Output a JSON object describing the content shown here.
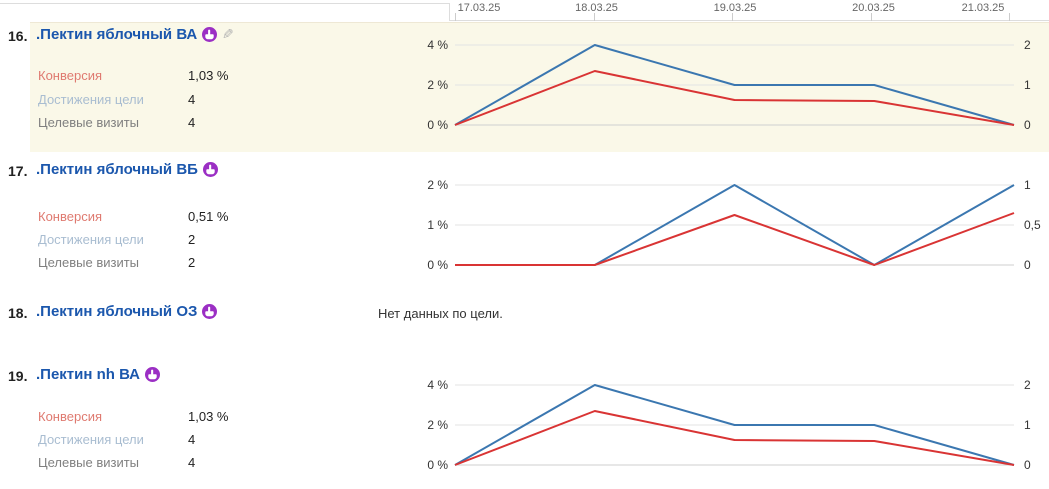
{
  "header": {
    "dates": [
      "17.03.25",
      "18.03.25",
      "19.03.25",
      "20.03.25",
      "21.03.25"
    ]
  },
  "metric_labels": {
    "conversion": "Конверсия",
    "achievements": "Достижения цели",
    "visits": "Целевые визиты"
  },
  "goals": [
    {
      "number": "16.",
      "title": ".Пектин яблочный ВА",
      "metrics": {
        "conversion": "1,03 %",
        "achievements": "4",
        "visits": "4"
      }
    },
    {
      "number": "17.",
      "title": ".Пектин яблочный ВБ",
      "metrics": {
        "conversion": "0,51 %",
        "achievements": "2",
        "visits": "2"
      }
    },
    {
      "number": "18.",
      "title": ".Пектин яблочный ОЗ",
      "no_data_text": "Нет данных по цели."
    },
    {
      "number": "19.",
      "title": ".Пектин nh ВА",
      "metrics": {
        "conversion": "1,03 %",
        "achievements": "4",
        "visits": "4"
      }
    }
  ],
  "chart_data": [
    {
      "type": "line",
      "goal": "16. .Пектин яблочный ВА",
      "x": [
        "17.03.25",
        "18.03.25",
        "19.03.25",
        "20.03.25",
        "21.03.25"
      ],
      "series": [
        {
          "name": "Конверсия",
          "axis": "left",
          "unit": "%",
          "color": "#d93434",
          "values": [
            0,
            2.7,
            1.25,
            1.2,
            0
          ]
        },
        {
          "name": "Достижения цели",
          "axis": "right",
          "unit": "count",
          "color": "#3b77b0",
          "values": [
            0,
            2,
            1,
            1,
            0
          ]
        }
      ],
      "left_axis": {
        "ticks": [
          "4 %",
          "2 %",
          "0 %"
        ],
        "max": 4,
        "min": 0
      },
      "right_axis": {
        "ticks": [
          "2",
          "1",
          "0"
        ],
        "max": 2,
        "min": 0
      },
      "grid": true,
      "legend": "none"
    },
    {
      "type": "line",
      "goal": "17. .Пектин яблочный ВБ",
      "x": [
        "17.03.25",
        "18.03.25",
        "19.03.25",
        "20.03.25",
        "21.03.25"
      ],
      "series": [
        {
          "name": "Конверсия",
          "axis": "left",
          "unit": "%",
          "color": "#d93434",
          "values": [
            0,
            0,
            1.25,
            0,
            1.3
          ]
        },
        {
          "name": "Достижения цели",
          "axis": "right",
          "unit": "count",
          "color": "#3b77b0",
          "values": [
            0,
            0,
            1,
            0,
            1
          ]
        }
      ],
      "left_axis": {
        "ticks": [
          "2 %",
          "1 %",
          "0 %"
        ],
        "max": 2,
        "min": 0
      },
      "right_axis": {
        "ticks": [
          "1",
          "0,5",
          "0"
        ],
        "max": 1,
        "min": 0
      },
      "grid": true,
      "legend": "none"
    },
    {
      "type": "line",
      "goal": "19. .Пектин nh ВА",
      "x": [
        "17.03.25",
        "18.03.25",
        "19.03.25",
        "20.03.25",
        "21.03.25"
      ],
      "series": [
        {
          "name": "Конверсия",
          "axis": "left",
          "unit": "%",
          "color": "#d93434",
          "values": [
            0,
            2.7,
            1.25,
            1.2,
            0
          ]
        },
        {
          "name": "Достижения цели",
          "axis": "right",
          "unit": "count",
          "color": "#3b77b0",
          "values": [
            0,
            2,
            1,
            1,
            0
          ]
        }
      ],
      "left_axis": {
        "ticks": [
          "4 %",
          "2 %",
          "0 %"
        ],
        "max": 4,
        "min": 0
      },
      "right_axis": {
        "ticks": [
          "2",
          "1",
          "0"
        ],
        "max": 2,
        "min": 0
      },
      "grid": true,
      "legend": "none"
    }
  ],
  "colors": {
    "highlight_row_bg": "#faf8e8",
    "line_red": "#d93434",
    "line_blue": "#3b77b0",
    "title_link": "#1b57ad",
    "conversion_label": "#df7a70",
    "achievements_label": "#a9bdd1",
    "visits_label": "#7f7f7f",
    "icon_purple": "#9b2fc4"
  }
}
